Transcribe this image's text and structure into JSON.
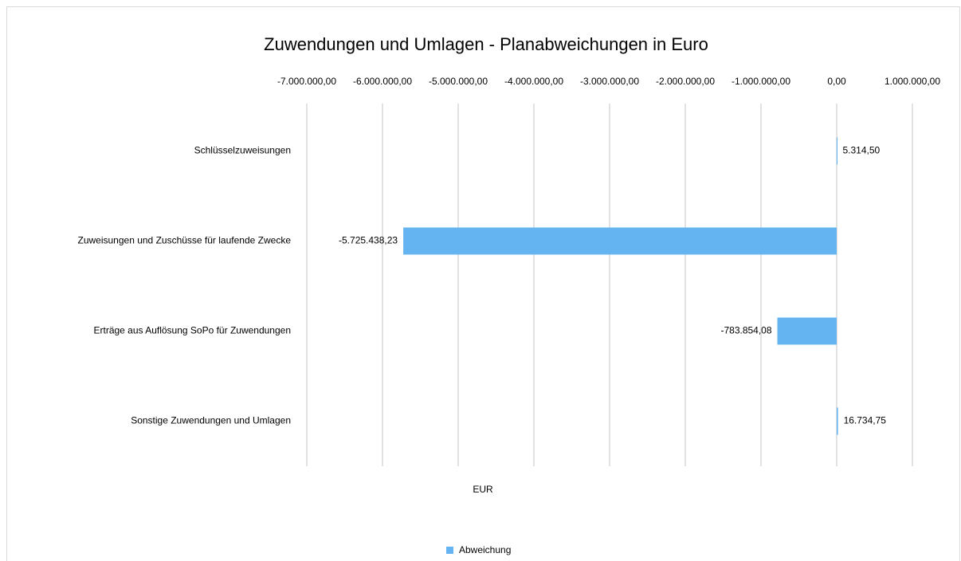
{
  "chart_data": {
    "type": "bar",
    "orientation": "horizontal",
    "title": "Zuwendungen und Umlagen - Planabweichungen in Euro",
    "xlabel": "EUR",
    "categories": [
      "Schlüsselzuweisungen",
      "Zuweisungen und Zuschüsse für laufende Zwecke",
      "Erträge aus Auflösung SoPo für Zuwendungen",
      "Sonstige Zuwendungen und Umlagen"
    ],
    "series": [
      {
        "name": "Abweichung",
        "color": "#63b4f0",
        "values": [
          5314.5,
          -5725438.23,
          -783854.08,
          16734.75
        ],
        "value_labels": [
          "5.314,50",
          "-5.725.438,23",
          "-783.854,08",
          "16.734,75"
        ]
      }
    ],
    "xlim": [
      -7000000,
      1000000
    ],
    "xticks": [
      {
        "value": -7000000,
        "label": "-7.000.000,00"
      },
      {
        "value": -6000000,
        "label": "-6.000.000,00"
      },
      {
        "value": -5000000,
        "label": "-5.000.000,00"
      },
      {
        "value": -4000000,
        "label": "-4.000.000,00"
      },
      {
        "value": -3000000,
        "label": "-3.000.000,00"
      },
      {
        "value": -2000000,
        "label": "-2.000.000,00"
      },
      {
        "value": -1000000,
        "label": "-1.000.000,00"
      },
      {
        "value": 0,
        "label": "0,00"
      },
      {
        "value": 1000000,
        "label": "1.000.000,00"
      }
    ],
    "grid": true,
    "legend": "bottom"
  }
}
